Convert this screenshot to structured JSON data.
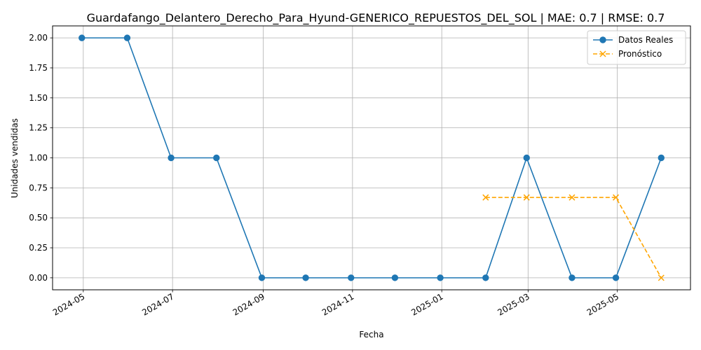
{
  "chart_data": {
    "type": "line",
    "title": "Guardafango_Delantero_Derecho_Para_Hyund-GENERICO_REPUESTOS_DEL_SOL | MAE: 0.7 | RMSE: 0.7",
    "xlabel": "Fecha",
    "ylabel": "Unidades vendidas",
    "ylim": [
      -0.1,
      2.1
    ],
    "xlim": [
      "2024-04-10",
      "2025-06-20"
    ],
    "grid": true,
    "legend_position": "top-right",
    "y_ticks": [
      "0.00",
      "0.25",
      "0.50",
      "0.75",
      "1.00",
      "1.25",
      "1.50",
      "1.75",
      "2.00"
    ],
    "x_ticks": [
      "2024-05",
      "2024-07",
      "2024-09",
      "2024-11",
      "2025-01",
      "2025-03",
      "2025-05"
    ],
    "series": [
      {
        "name": "Datos Reales",
        "color": "#1f77b4",
        "style": "solid",
        "marker": "circle",
        "x": [
          "2024-04-30",
          "2024-05-31",
          "2024-06-30",
          "2024-07-31",
          "2024-08-31",
          "2024-09-30",
          "2024-10-31",
          "2024-11-30",
          "2024-12-31",
          "2025-01-31",
          "2025-02-28",
          "2025-03-31",
          "2025-04-30",
          "2025-05-31"
        ],
        "values": [
          2,
          2,
          1,
          1,
          0,
          0,
          0,
          0,
          0,
          0,
          1,
          0,
          0,
          1
        ]
      },
      {
        "name": "Pronóstico",
        "color": "#ffa500",
        "style": "dashed",
        "marker": "x",
        "x": [
          "2025-01-31",
          "2025-02-28",
          "2025-03-31",
          "2025-04-30",
          "2025-05-31"
        ],
        "values": [
          0.67,
          0.67,
          0.67,
          0.67,
          0
        ]
      }
    ]
  }
}
